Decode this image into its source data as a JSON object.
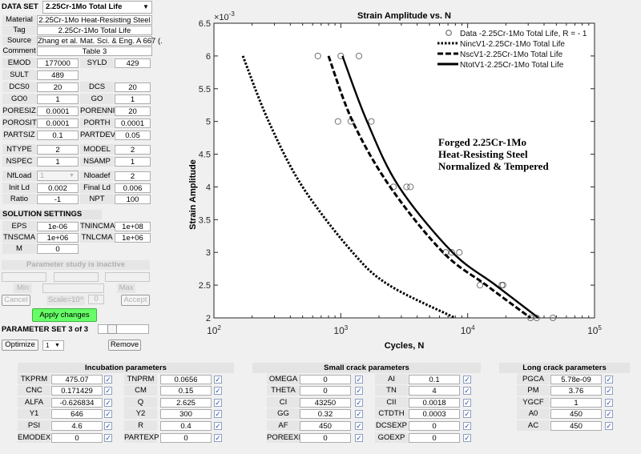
{
  "data_set": {
    "label": "DATA SET",
    "value": "2.25Cr-1Mo Total Life"
  },
  "info": [
    {
      "label": "Material",
      "value": "2.25Cr-1Mo Heat-Resisting Steel"
    },
    {
      "label": "Tag",
      "value": "2.25Cr-1Mo Total Life"
    },
    {
      "label": "Source",
      "value": "Zhang et al. Mat. Sci. & Eng. A 667 (."
    },
    {
      "label": "Comment",
      "value": "Table 3"
    }
  ],
  "params": [
    [
      {
        "label": "EMOD",
        "value": "177000"
      },
      {
        "label": "SYLD",
        "value": "429"
      }
    ],
    [
      {
        "label": "SULT",
        "value": "489"
      }
    ],
    [
      {
        "label": "DCS0",
        "value": "20"
      },
      {
        "label": "DCS",
        "value": "20"
      }
    ],
    [
      {
        "label": "GO0",
        "value": "1"
      },
      {
        "label": "GO",
        "value": "1"
      }
    ],
    [
      {
        "label": "PORESIZ",
        "value": "0.0001"
      },
      {
        "label": "PORENNI",
        "value": "20"
      }
    ],
    [
      {
        "label": "POROSIT",
        "value": "0.0001"
      },
      {
        "label": "PORTH",
        "value": "0.0001"
      }
    ],
    [
      {
        "label": "PARTSIZ",
        "value": "0.1"
      },
      {
        "label": "PARTDEV",
        "value": "0.05"
      }
    ],
    [
      {
        "label": "NTYPE",
        "value": "2"
      },
      {
        "label": "MODEL",
        "value": "2"
      }
    ],
    [
      {
        "label": "NSPEC",
        "value": "1"
      },
      {
        "label": "NSAMP",
        "value": "1"
      }
    ],
    [
      {
        "label": "NfLoad",
        "value": "1",
        "disabled_dropdown": true
      },
      {
        "label": "Nloadef",
        "value": "2"
      }
    ],
    [
      {
        "label": "Init Ld",
        "value": "0.002"
      },
      {
        "label": "Final Ld",
        "value": "0.006"
      }
    ],
    [
      {
        "label": "Ratio",
        "value": "-1"
      },
      {
        "label": "NPT",
        "value": "100"
      }
    ]
  ],
  "solution": {
    "header": "SOLUTION SETTINGS",
    "rows": [
      [
        {
          "label": "EPS",
          "value": "1e-06"
        },
        {
          "label": "TNINCMA",
          "value": "1e+08"
        }
      ],
      [
        {
          "label": "TNSCMA",
          "value": "1e+06"
        },
        {
          "label": "TNLCMA",
          "value": "1e+06"
        }
      ],
      [
        {
          "label": "M",
          "value": "0"
        }
      ]
    ]
  },
  "study": {
    "status": "Parameter study is inactive",
    "min": "Min",
    "max": "Max",
    "cancel": "Cancel",
    "scale": "Scale=10^",
    "scale_value": "0",
    "accept": "Accept",
    "apply": "Apply changes"
  },
  "param_set": {
    "label": "PARAMETER SET 3 of 3",
    "optimize": "Optimize",
    "select": "1",
    "remove": "Remove"
  },
  "panels": [
    {
      "title": "Incubation parameters",
      "rows": [
        [
          {
            "label": "TKPRM",
            "value": "475.07",
            "checked": true
          },
          {
            "label": "TNPRM",
            "value": "0.0656",
            "checked": true
          }
        ],
        [
          {
            "label": "CNC",
            "value": "0.171429",
            "checked": true
          },
          {
            "label": "CM",
            "value": "0.15",
            "checked": true
          }
        ],
        [
          {
            "label": "ALFA",
            "value": "-0.626834",
            "checked": true
          },
          {
            "label": "Q",
            "value": "2.625",
            "checked": true
          }
        ],
        [
          {
            "label": "Y1",
            "value": "646",
            "checked": true
          },
          {
            "label": "Y2",
            "value": "300",
            "checked": true
          }
        ],
        [
          {
            "label": "PSI",
            "value": "4.6",
            "checked": true
          },
          {
            "label": "R",
            "value": "0.4",
            "checked": true
          }
        ],
        [
          {
            "label": "EMODEXI",
            "value": "0",
            "checked": true
          },
          {
            "label": "PARTEXP",
            "value": "0",
            "checked": true
          }
        ]
      ]
    },
    {
      "title": "Small crack parameters",
      "rows": [
        [
          {
            "label": "OMEGA",
            "value": "0",
            "checked": true
          },
          {
            "label": "AI",
            "value": "0.1",
            "checked": true
          }
        ],
        [
          {
            "label": "THETA",
            "value": "0",
            "checked": true
          },
          {
            "label": "TN",
            "value": "4",
            "checked": true
          }
        ],
        [
          {
            "label": "CI",
            "value": "43250",
            "checked": true
          },
          {
            "label": "CII",
            "value": "0.0018",
            "checked": true
          }
        ],
        [
          {
            "label": "GG",
            "value": "0.32",
            "checked": true
          },
          {
            "label": "CTDTH",
            "value": "0.0003",
            "checked": true
          }
        ],
        [
          {
            "label": "AF",
            "value": "450",
            "checked": true
          },
          {
            "label": "DCSEXP",
            "value": "0",
            "checked": true
          }
        ],
        [
          {
            "label": "POREEXI",
            "value": "0",
            "checked": true
          },
          {
            "label": "GOEXP",
            "value": "0",
            "checked": true
          }
        ]
      ]
    },
    {
      "title": "Long crack parameters",
      "rows": [
        [
          {
            "label": "PGCA",
            "value": "5.78e-09",
            "checked": true
          }
        ],
        [
          {
            "label": "PM",
            "value": "3.76",
            "checked": true
          }
        ],
        [
          {
            "label": "YGCF",
            "value": "1",
            "checked": true
          }
        ],
        [
          {
            "label": "A0",
            "value": "450",
            "checked": true
          }
        ],
        [
          {
            "label": "AC",
            "value": "450",
            "checked": true
          }
        ]
      ]
    }
  ],
  "chart_data": {
    "type": "line",
    "title": "Strain Amplitude vs. N",
    "xlabel": "Cycles, N",
    "ylabel": "Strain Amplitude",
    "y_multiplier": "×10^-3",
    "xscale": "log",
    "xlim": [
      100,
      100000
    ],
    "ylim": [
      2,
      6.5
    ],
    "xticks": [
      "10^2",
      "10^3",
      "10^4",
      "10^5"
    ],
    "yticks": [
      "2",
      "2.5",
      "3",
      "3.5",
      "4",
      "4.5",
      "5",
      "5.5",
      "6",
      "6.5"
    ],
    "grid": false,
    "legend_position": "top-right",
    "annotation": [
      "Forged 2.25Cr-1Mo",
      "Heat-Resisting Steel",
      "Normalized & Tempered"
    ],
    "series": [
      {
        "name": "Data -2.25Cr-1Mo Total Life, R = - 1",
        "style": "circle-marker",
        "color": "#666666",
        "points": [
          [
            660,
            6
          ],
          [
            1000,
            6
          ],
          [
            1390,
            6
          ],
          [
            950,
            5
          ],
          [
            1200,
            5
          ],
          [
            1740,
            5
          ],
          [
            2600,
            4
          ],
          [
            3300,
            4
          ],
          [
            3540,
            4
          ],
          [
            6700,
            3
          ],
          [
            7500,
            3
          ],
          [
            8600,
            3
          ],
          [
            12500,
            2.5
          ],
          [
            18600,
            2.5
          ],
          [
            19000,
            2.5
          ],
          [
            31300,
            2
          ],
          [
            35000,
            2
          ],
          [
            47000,
            2
          ]
        ]
      },
      {
        "name": "NincV1-2.25Cr-1Mo Total Life",
        "style": "dotted",
        "color": "#000000",
        "points": [
          [
            169,
            6
          ],
          [
            270,
            5
          ],
          [
            500,
            4
          ],
          [
            1240,
            3
          ],
          [
            2400,
            2.5
          ],
          [
            7950,
            2
          ]
        ]
      },
      {
        "name": "NscV1-2.25Cr-1Mo Total Life",
        "style": "dashed",
        "color": "#000000",
        "points": [
          [
            800,
            6
          ],
          [
            1240,
            5
          ],
          [
            2450,
            4
          ],
          [
            6400,
            3
          ],
          [
            14000,
            2.5
          ],
          [
            31300,
            2
          ]
        ]
      },
      {
        "name": "NtotV1-2.25Cr-1Mo Total Life",
        "style": "solid",
        "color": "#000000",
        "points": [
          [
            1030,
            6
          ],
          [
            1610,
            5
          ],
          [
            2880,
            4
          ],
          [
            7600,
            3
          ],
          [
            16600,
            2.5
          ],
          [
            36100,
            2
          ]
        ]
      }
    ]
  }
}
